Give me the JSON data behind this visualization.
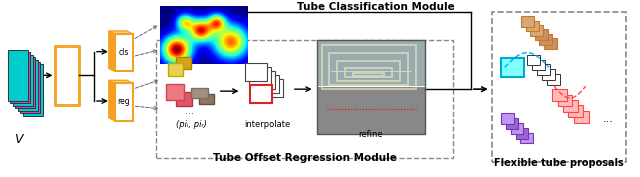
{
  "bg_color": "#ffffff",
  "orange": "#F5A020",
  "light_orange": "#FAD080",
  "cyan_frame": "#00CCCC",
  "magenta_frame": "#CC44CC",
  "tube_cls_label": "Tube Classification Module",
  "tube_reg_label": "Tube Offset Regression Module",
  "flex_label": "Flexible tube proposals",
  "cls_label": "cls",
  "reg_label": "reg",
  "interpolate_label": "interpolate",
  "refine_label": "refine",
  "v_label": "V",
  "pi_label": "(piᵢ, piᵣ)",
  "dots_label": "...",
  "yellow1": "#E8D050",
  "yellow2": "#D4A020",
  "pink1": "#F07880",
  "pink2": "#E05868",
  "gray1": "#A09080",
  "gray2": "#907860",
  "light_cyan": "#80FFFF",
  "tan1": "#D4A878",
  "tan2": "#C89060",
  "light_pink": "#FFBBBB",
  "purple1": "#BB99EE",
  "purple2": "#9966CC"
}
